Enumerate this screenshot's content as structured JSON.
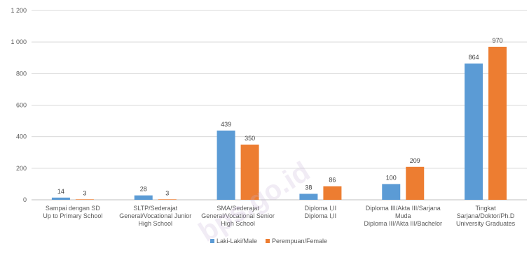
{
  "chart_data": {
    "type": "bar",
    "categories": [
      [
        "Sampai dengan SD",
        "Up to Primary School"
      ],
      [
        "SLTP/Sederajat",
        "General/Vocational Junior",
        "High School"
      ],
      [
        "SMA/Sederajat",
        "General/Vocational Senior",
        "High School"
      ],
      [
        "Diploma I,II",
        "Diploma I,II"
      ],
      [
        "Diploma III/Akta III/Sarjana",
        "Muda",
        "Diploma III/Akta III/Bachelor"
      ],
      [
        "Tingkat",
        "Sarjana/Doktor/Ph.D",
        "University Graduates"
      ]
    ],
    "series": [
      {
        "name": "Laki-Laki/Male",
        "color": "#5b9bd5",
        "values": [
          14,
          28,
          439,
          38,
          100,
          864
        ]
      },
      {
        "name": "Perempuan/Female",
        "color": "#ed7d31",
        "values": [
          3,
          3,
          350,
          86,
          209,
          970
        ]
      }
    ],
    "y_ticks": [
      "0",
      "200",
      "400",
      "600",
      "800",
      "1 000",
      "1 200"
    ],
    "ylim": [
      0,
      1200
    ],
    "grid": true,
    "legend": "bottom-center",
    "watermark": "bps.go.id"
  }
}
